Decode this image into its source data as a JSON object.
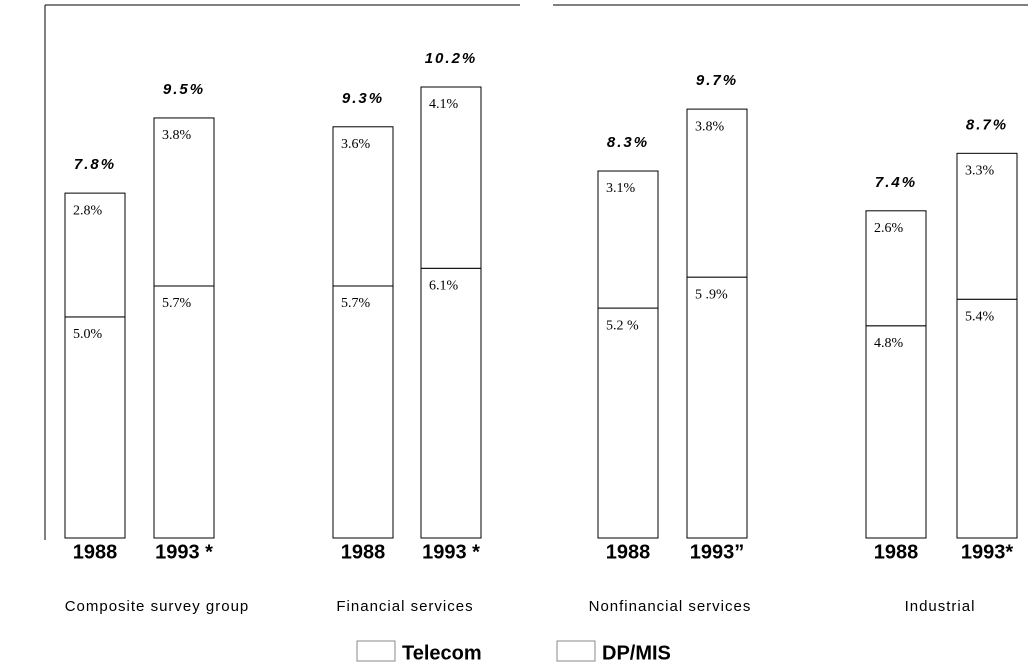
{
  "chart_data": {
    "type": "bar",
    "stacked": true,
    "categories": [
      "1988",
      "1993 *",
      "1988",
      "1993 *",
      "1988",
      "1993”",
      "1988",
      "1993*"
    ],
    "groups": [
      "Composite survey group",
      "Financial services",
      "Nonfinancial services",
      "Industrial"
    ],
    "series": [
      {
        "name": "Telecom",
        "color": "#ffffff",
        "values": [
          2.8,
          3.8,
          3.6,
          4.1,
          3.1,
          3.8,
          2.6,
          3.3
        ],
        "value_labels": [
          "2.8%",
          "3.8%",
          "3.6%",
          "4.1%",
          "3.1%",
          "3.8%",
          "2.6%",
          "3.3%"
        ]
      },
      {
        "name": "DP/MIS",
        "color": "#ffffff",
        "values": [
          5.0,
          5.7,
          5.7,
          6.1,
          5.2,
          5.9,
          4.8,
          5.4
        ],
        "value_labels": [
          "5.0%",
          "5.7%",
          "5.7%",
          "6.1%",
          "5.2 %",
          "5 .9%",
          "4.8%",
          "5.4%"
        ]
      }
    ],
    "totals": [
      7.8,
      9.5,
      9.3,
      10.2,
      8.3,
      9.7,
      7.4,
      8.7
    ],
    "total_labels": [
      "7.8%",
      "9.5%",
      "9.3%",
      "10.2%",
      "8.3%",
      "9.7%",
      "7.4%",
      "8.7%"
    ]
  }
}
